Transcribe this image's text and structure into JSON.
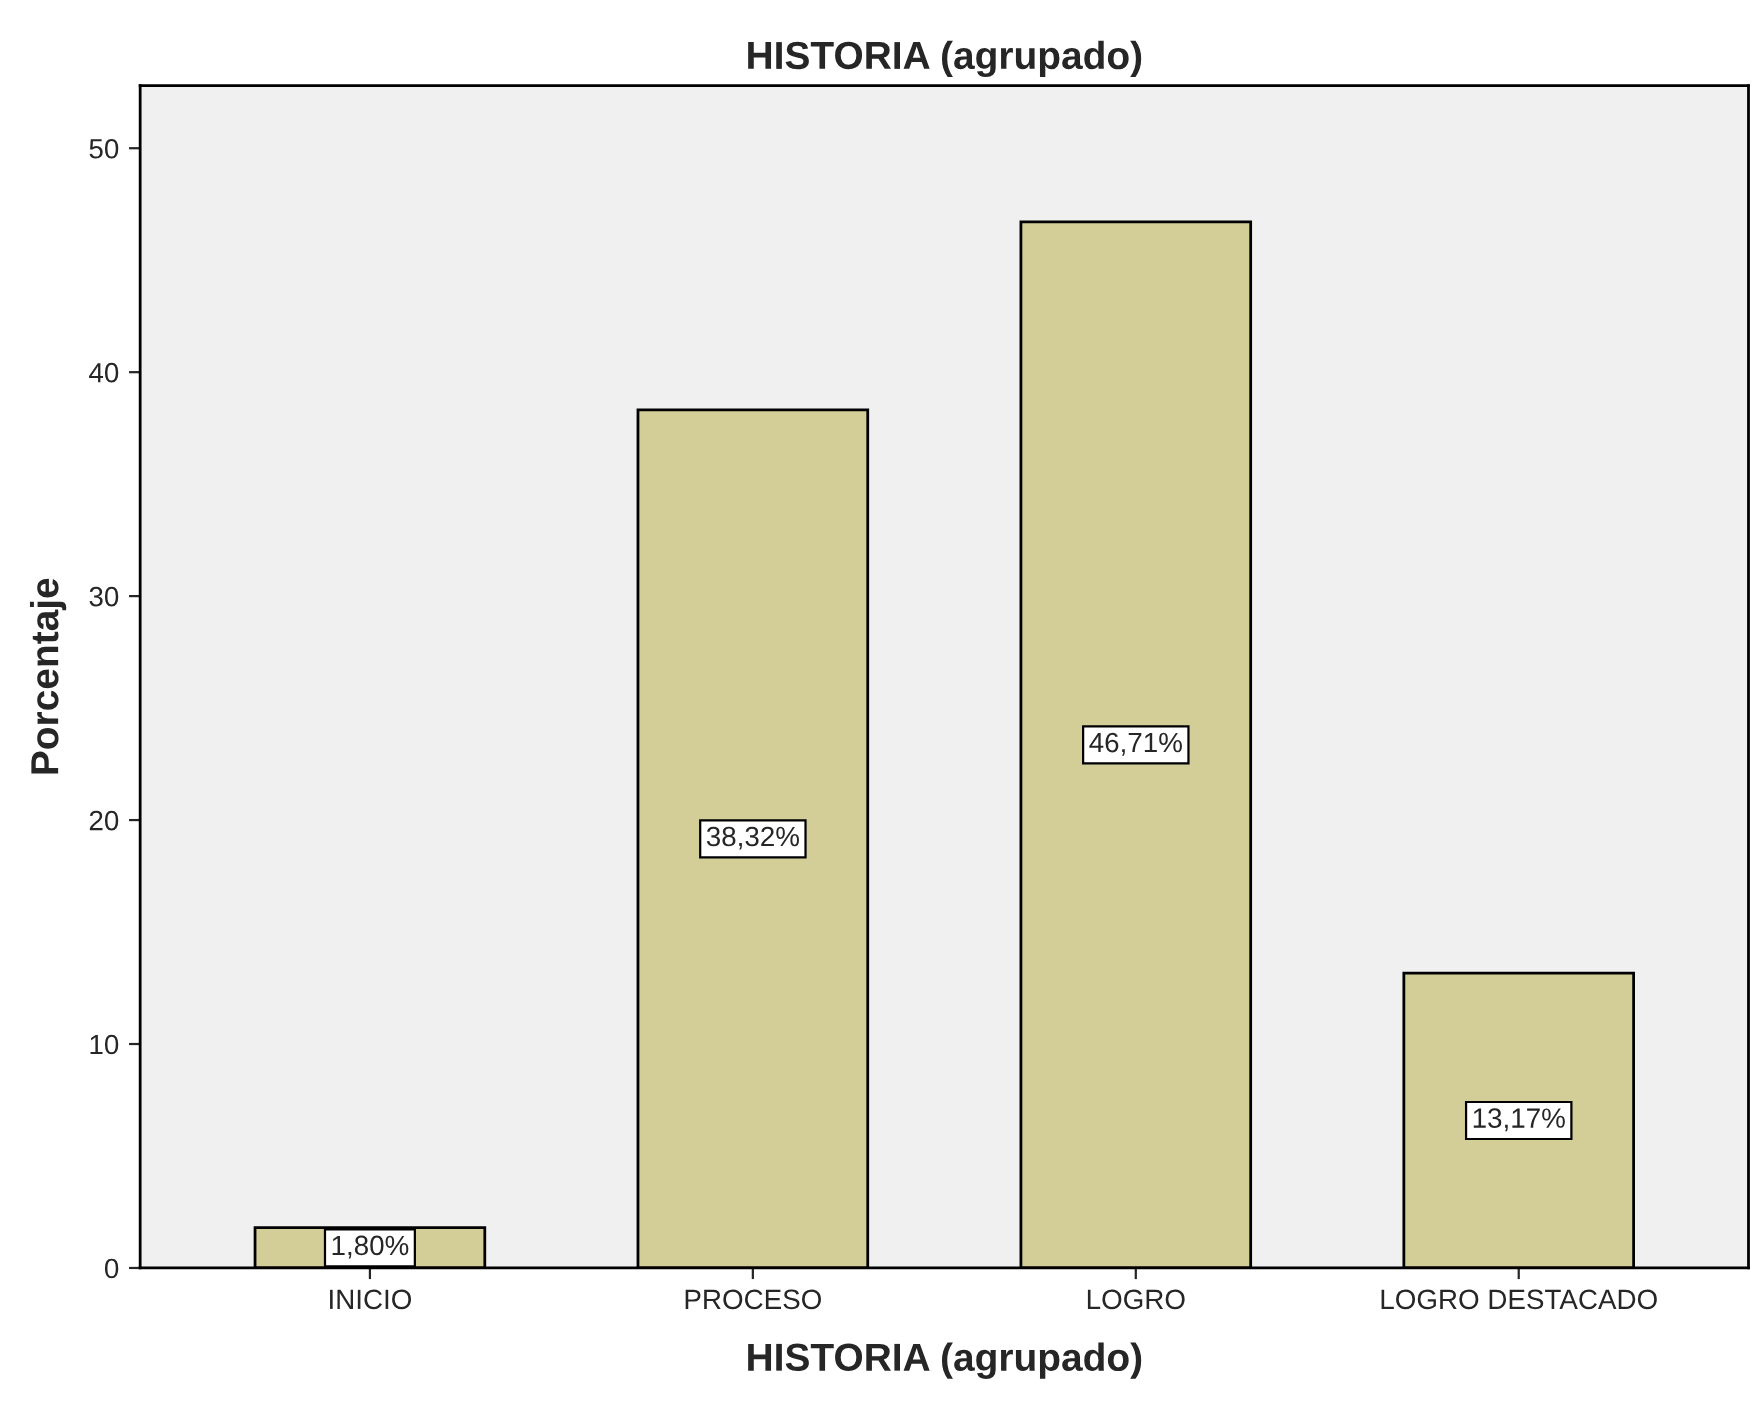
{
  "chart_data": {
    "type": "bar",
    "title": "HISTORIA (agrupado)",
    "xlabel": "HISTORIA (agrupado)",
    "ylabel": "Porcentaje",
    "categories": [
      "INICIO",
      "PROCESO",
      "LOGRO",
      "LOGRO DESTACADO"
    ],
    "values": [
      1.8,
      38.32,
      46.71,
      13.17
    ],
    "value_labels": [
      "1,80%",
      "38,32%",
      "46,71%",
      "13,17%"
    ],
    "color": "#d3ce97",
    "ylim": [
      0,
      52.8
    ],
    "yticks": [
      0,
      10,
      20,
      30,
      40,
      50
    ],
    "grid": false
  }
}
